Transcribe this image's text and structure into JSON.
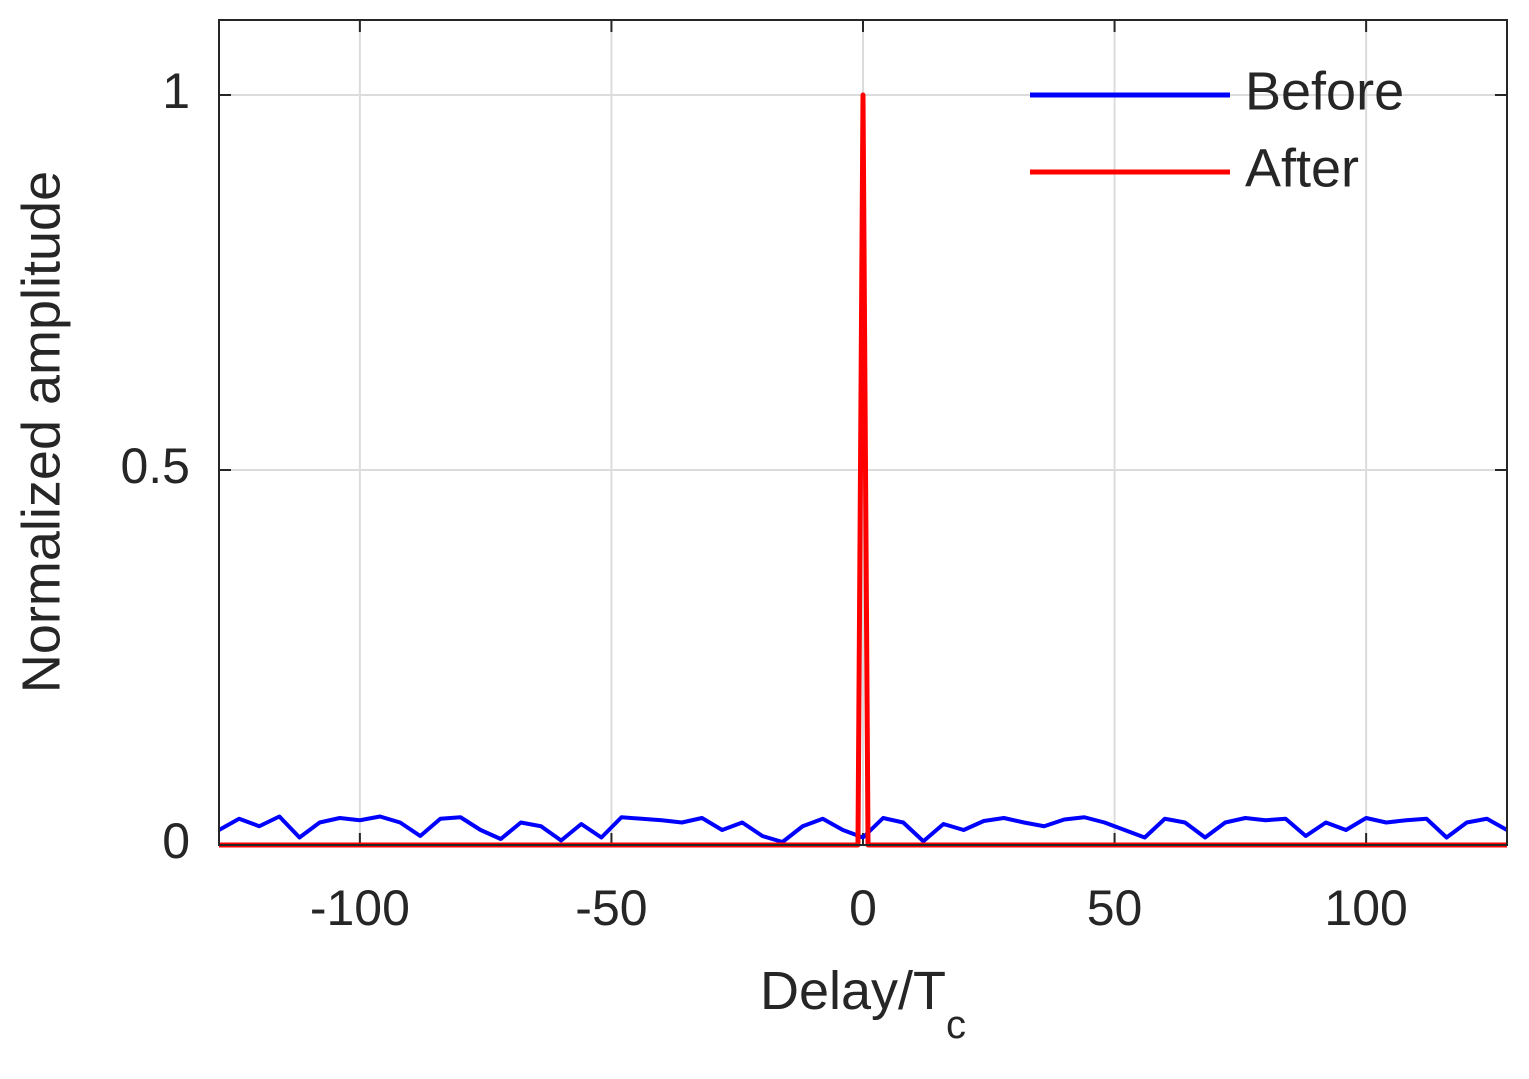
{
  "chart_data": {
    "type": "line",
    "xlabel": "Delay/T",
    "xlabel_sub": "c",
    "ylabel": "Normalized amplitude",
    "xlim": [
      -128,
      128
    ],
    "ylim": [
      0,
      1.1
    ],
    "xticks": [
      -100,
      -50,
      0,
      50,
      100
    ],
    "yticks": [
      0,
      0.5,
      1
    ],
    "grid": true,
    "legend": "upper right",
    "series": [
      {
        "name": "Before",
        "color": "#0000ff",
        "x": [
          -128,
          -124,
          -120,
          -116,
          -112,
          -108,
          -104,
          -100,
          -96,
          -92,
          -88,
          -84,
          -80,
          -76,
          -72,
          -68,
          -64,
          -60,
          -56,
          -52,
          -48,
          -44,
          -40,
          -36,
          -32,
          -28,
          -24,
          -20,
          -16,
          -12,
          -8,
          -4,
          0,
          4,
          8,
          12,
          16,
          20,
          24,
          28,
          32,
          36,
          40,
          44,
          48,
          52,
          56,
          60,
          64,
          68,
          72,
          76,
          80,
          84,
          88,
          92,
          96,
          100,
          104,
          108,
          112,
          116,
          120,
          124,
          128
        ],
        "values": [
          0.02,
          0.035,
          0.025,
          0.038,
          0.01,
          0.03,
          0.036,
          0.033,
          0.038,
          0.03,
          0.012,
          0.035,
          0.037,
          0.02,
          0.008,
          0.03,
          0.025,
          0.006,
          0.028,
          0.01,
          0.037,
          0.035,
          0.033,
          0.03,
          0.036,
          0.02,
          0.03,
          0.012,
          0.004,
          0.025,
          0.035,
          0.02,
          0.01,
          0.036,
          0.03,
          0.005,
          0.028,
          0.02,
          0.032,
          0.036,
          0.03,
          0.025,
          0.034,
          0.037,
          0.03,
          0.02,
          0.01,
          0.035,
          0.03,
          0.01,
          0.03,
          0.036,
          0.033,
          0.035,
          0.012,
          0.03,
          0.02,
          0.036,
          0.03,
          0.033,
          0.035,
          0.01,
          0.03,
          0.035,
          0.02
        ]
      },
      {
        "name": "After",
        "color": "#ff0000",
        "x": [
          -128,
          -1,
          0,
          1,
          128
        ],
        "values": [
          0,
          0,
          1,
          0,
          0
        ]
      }
    ]
  }
}
